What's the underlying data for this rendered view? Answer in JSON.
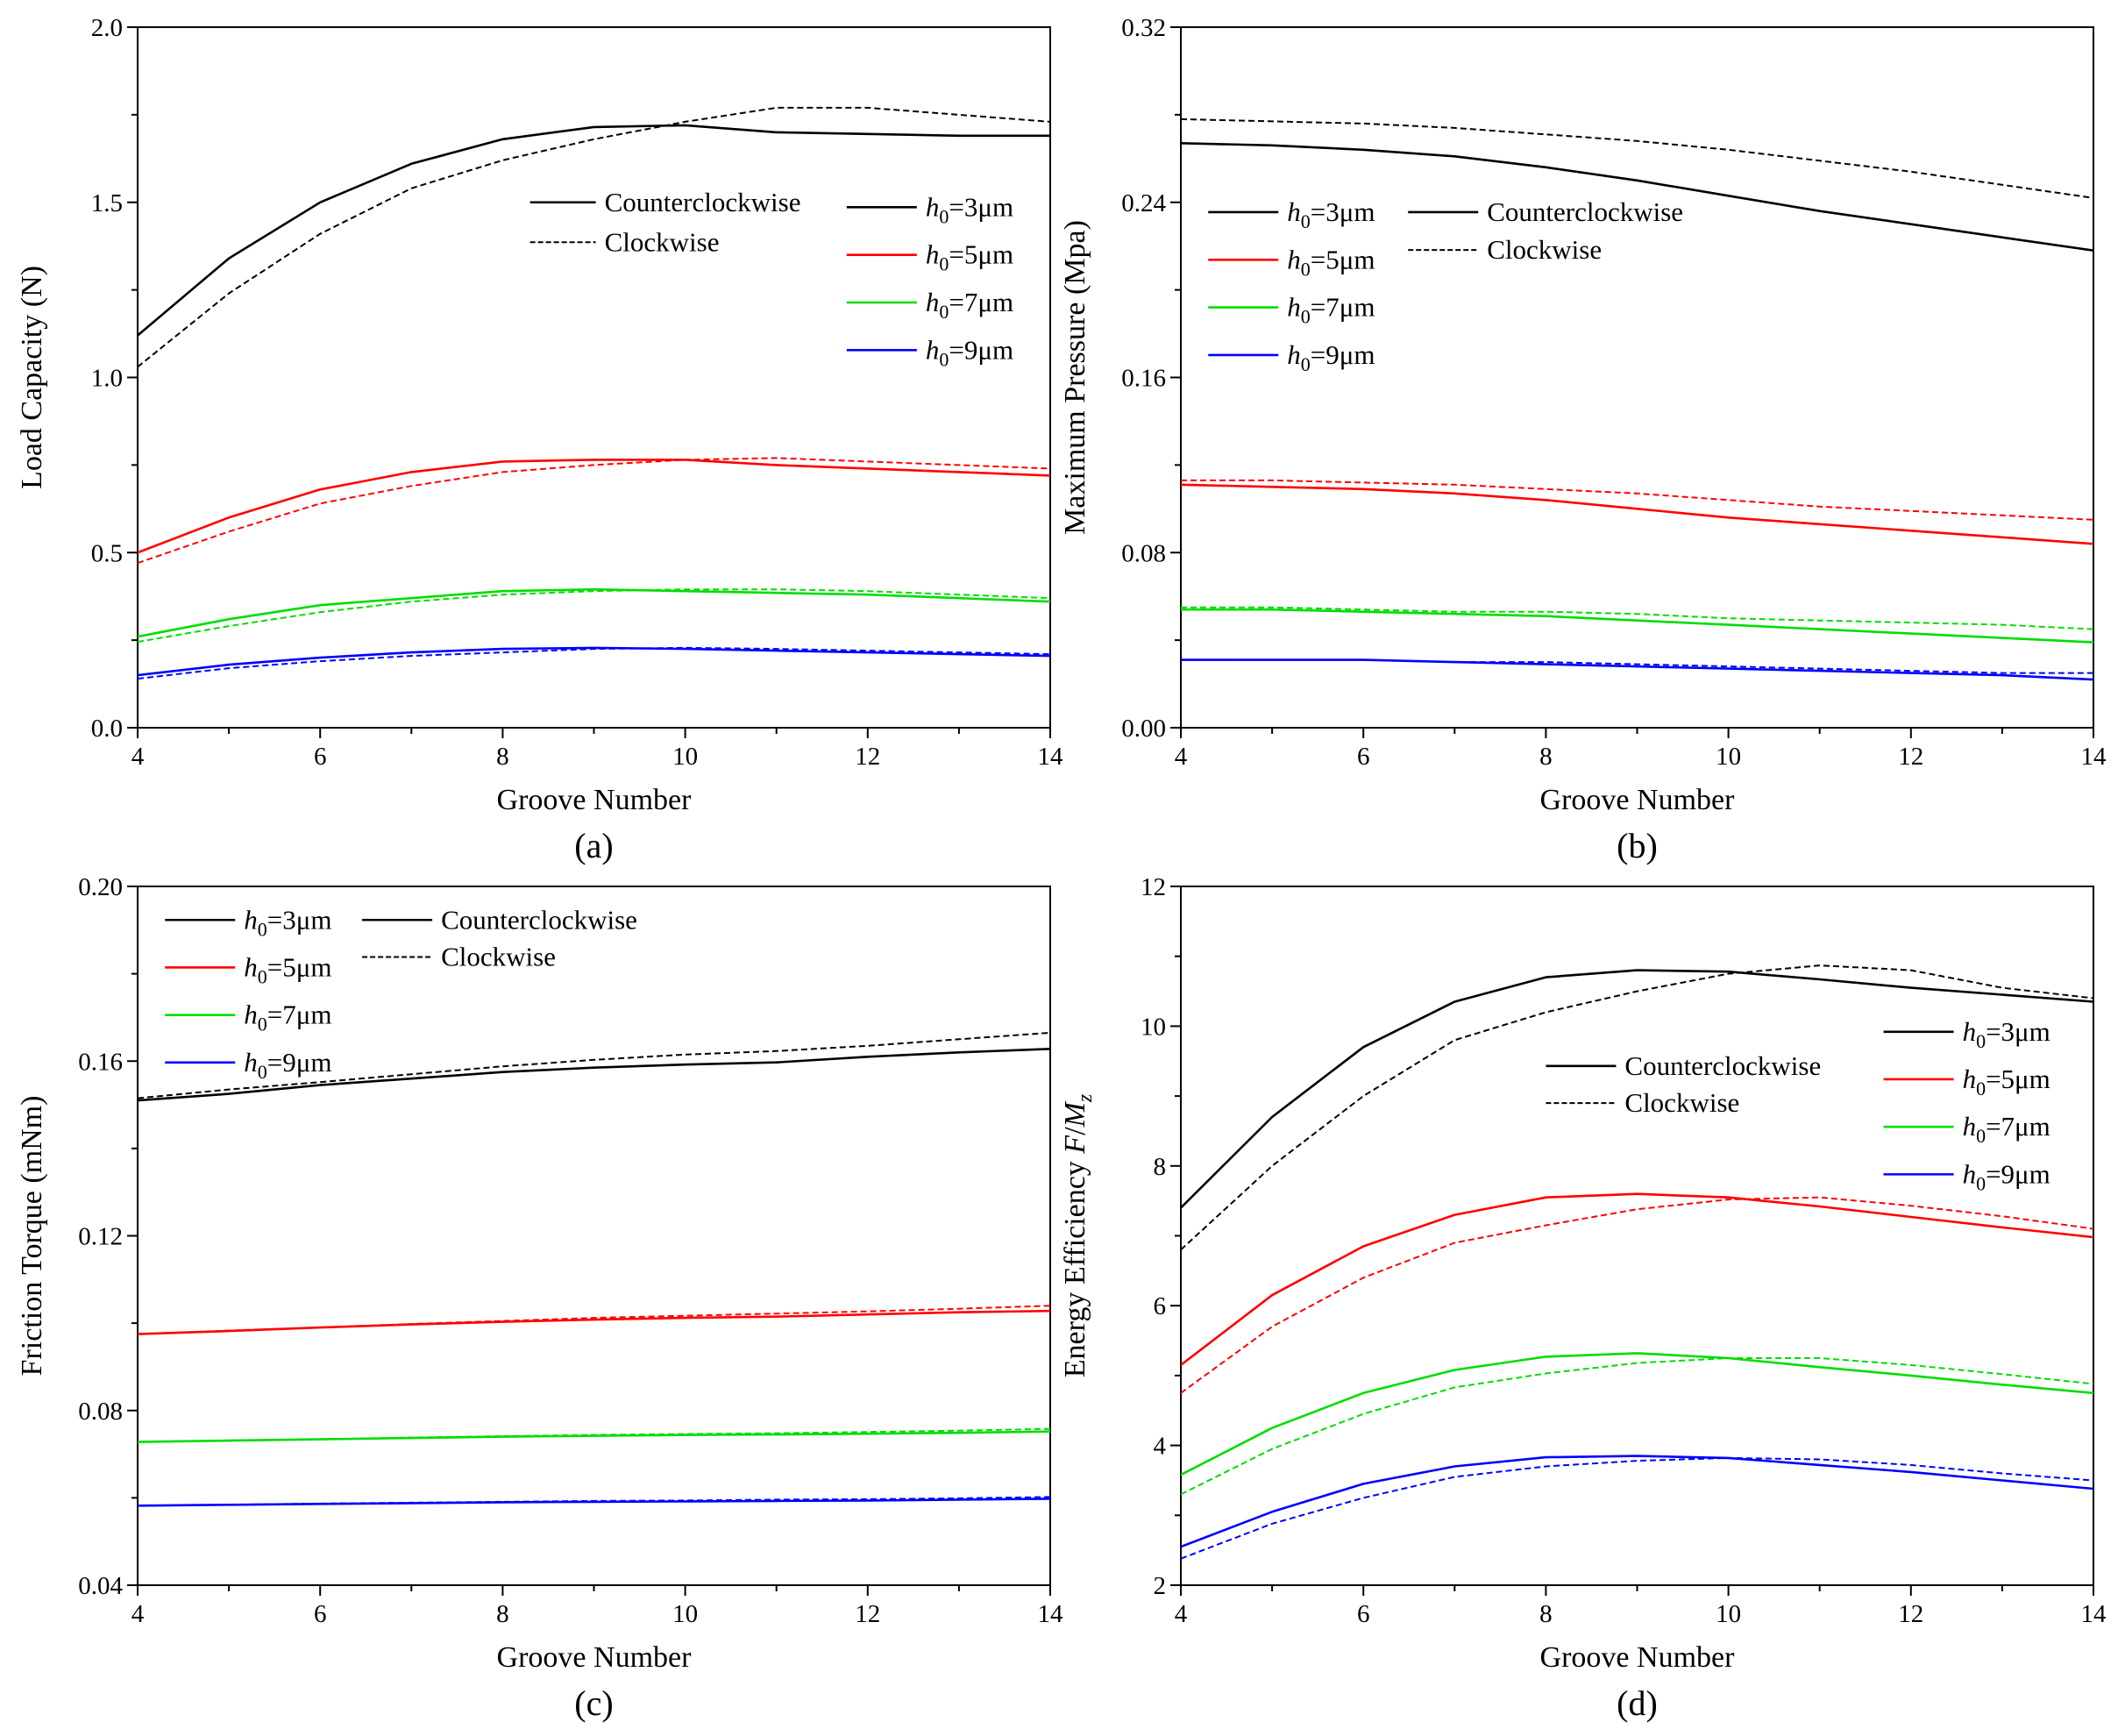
{
  "chart_data": [
    {
      "type": "line",
      "panel": "(a)",
      "xlabel": "Groove Number",
      "ylabel": "Load Capacity (N)",
      "xlim": [
        4,
        14
      ],
      "ylim": [
        0.0,
        2.0
      ],
      "xticks": [
        "4",
        "6",
        "8",
        "10",
        "12",
        "14"
      ],
      "yticks": [
        "0.0",
        "0.5",
        "1.0",
        "1.5",
        "2.0"
      ],
      "ytick_values": [
        0.0,
        0.5,
        1.0,
        1.5,
        2.0
      ],
      "x": [
        4,
        5,
        6,
        7,
        8,
        9,
        10,
        11,
        12,
        13,
        14
      ],
      "direction_legend": {
        "solid": "Counterclockwise",
        "dashed": "Clockwise"
      },
      "series": [
        {
          "h0": "3",
          "color": "#000000",
          "ccw": [
            1.12,
            1.34,
            1.5,
            1.61,
            1.68,
            1.715,
            1.72,
            1.7,
            1.695,
            1.69,
            1.69
          ],
          "cw": [
            1.03,
            1.24,
            1.41,
            1.54,
            1.62,
            1.68,
            1.73,
            1.77,
            1.77,
            1.75,
            1.73
          ]
        },
        {
          "h0": "5",
          "color": "#ff0000",
          "ccw": [
            0.5,
            0.6,
            0.68,
            0.73,
            0.76,
            0.765,
            0.765,
            0.75,
            0.74,
            0.73,
            0.72
          ],
          "cw": [
            0.47,
            0.56,
            0.64,
            0.69,
            0.73,
            0.75,
            0.765,
            0.77,
            0.76,
            0.75,
            0.74
          ]
        },
        {
          "h0": "7",
          "color": "#00dd00",
          "ccw": [
            0.26,
            0.31,
            0.35,
            0.37,
            0.39,
            0.395,
            0.39,
            0.385,
            0.38,
            0.37,
            0.36
          ],
          "cw": [
            0.245,
            0.29,
            0.33,
            0.36,
            0.38,
            0.39,
            0.395,
            0.395,
            0.39,
            0.38,
            0.37
          ]
        },
        {
          "h0": "9",
          "color": "#0000ff",
          "ccw": [
            0.15,
            0.18,
            0.2,
            0.215,
            0.225,
            0.228,
            0.225,
            0.22,
            0.215,
            0.21,
            0.205
          ],
          "cw": [
            0.14,
            0.17,
            0.19,
            0.205,
            0.215,
            0.225,
            0.228,
            0.225,
            0.22,
            0.215,
            0.21
          ]
        }
      ],
      "legend_lines": [
        {
          "text_pre": "",
          "text_post": "Counterclockwise",
          "style": "solid",
          "color": "#000000",
          "lx1": 0.43,
          "ly": 0.25,
          "w": 75
        },
        {
          "text_pre": "",
          "text_post": "Clockwise",
          "style": "dashed",
          "color": "#000000",
          "lx1": 0.43,
          "ly": 0.307,
          "w": 75
        },
        {
          "text_pre": "h",
          "text_post": "=3μm",
          "style": "solid",
          "color": "#000000",
          "lx1": 0.777,
          "ly": 0.257,
          "w": 80
        },
        {
          "text_pre": "h",
          "text_post": "=5μm",
          "style": "solid",
          "color": "#ff0000",
          "lx1": 0.777,
          "ly": 0.325,
          "w": 80
        },
        {
          "text_pre": "h",
          "text_post": "=7μm",
          "style": "solid",
          "color": "#00dd00",
          "lx1": 0.777,
          "ly": 0.393,
          "w": 80
        },
        {
          "text_pre": "h",
          "text_post": "=9μm",
          "style": "solid",
          "color": "#0000ff",
          "lx1": 0.777,
          "ly": 0.461,
          "w": 80
        }
      ]
    },
    {
      "type": "line",
      "panel": "(b)",
      "xlabel": "Groove Number",
      "ylabel": "Maximum Pressure (Mpa)",
      "xlim": [
        4,
        14
      ],
      "ylim": [
        0.0,
        0.32
      ],
      "xticks": [
        "4",
        "6",
        "8",
        "10",
        "12",
        "14"
      ],
      "yticks": [
        "0.00",
        "0.08",
        "0.16",
        "0.24",
        "0.32"
      ],
      "ytick_values": [
        0.0,
        0.08,
        0.16,
        0.24,
        0.32
      ],
      "x": [
        4,
        5,
        6,
        7,
        8,
        9,
        10,
        11,
        12,
        13,
        14
      ],
      "direction_legend": {
        "solid": "Counterclockwise",
        "dashed": "Clockwise"
      },
      "series": [
        {
          "h0": "3",
          "color": "#000000",
          "ccw": [
            0.267,
            0.266,
            0.264,
            0.261,
            0.256,
            0.25,
            0.243,
            0.236,
            0.23,
            0.224,
            0.218
          ],
          "cw": [
            0.278,
            0.277,
            0.276,
            0.274,
            0.271,
            0.268,
            0.264,
            0.259,
            0.254,
            0.248,
            0.242
          ]
        },
        {
          "h0": "5",
          "color": "#ff0000",
          "ccw": [
            0.111,
            0.11,
            0.109,
            0.107,
            0.104,
            0.1,
            0.096,
            0.093,
            0.09,
            0.087,
            0.084
          ],
          "cw": [
            0.113,
            0.113,
            0.112,
            0.111,
            0.109,
            0.107,
            0.104,
            0.101,
            0.099,
            0.097,
            0.095
          ]
        },
        {
          "h0": "7",
          "color": "#00dd00",
          "ccw": [
            0.054,
            0.054,
            0.053,
            0.052,
            0.051,
            0.049,
            0.047,
            0.045,
            0.043,
            0.041,
            0.039
          ],
          "cw": [
            0.055,
            0.055,
            0.054,
            0.053,
            0.053,
            0.052,
            0.05,
            0.049,
            0.048,
            0.047,
            0.045
          ]
        },
        {
          "h0": "9",
          "color": "#0000ff",
          "ccw": [
            0.031,
            0.031,
            0.031,
            0.03,
            0.029,
            0.028,
            0.027,
            0.026,
            0.025,
            0.024,
            0.022
          ],
          "cw": [
            0.031,
            0.031,
            0.031,
            0.03,
            0.03,
            0.029,
            0.028,
            0.027,
            0.026,
            0.025,
            0.025
          ]
        }
      ],
      "legend_lines": [
        {
          "text_pre": "h",
          "text_post": "=3μm",
          "style": "solid",
          "color": "#000000",
          "lx1": 0.03,
          "ly": 0.264,
          "w": 80
        },
        {
          "text_pre": "h",
          "text_post": "=5μm",
          "style": "solid",
          "color": "#ff0000",
          "lx1": 0.03,
          "ly": 0.332,
          "w": 80
        },
        {
          "text_pre": "h",
          "text_post": "=7μm",
          "style": "solid",
          "color": "#00dd00",
          "lx1": 0.03,
          "ly": 0.4,
          "w": 80
        },
        {
          "text_pre": "h",
          "text_post": "=9μm",
          "style": "solid",
          "color": "#0000ff",
          "lx1": 0.03,
          "ly": 0.468,
          "w": 80
        },
        {
          "text_pre": "",
          "text_post": "Counterclockwise",
          "style": "solid",
          "color": "#000000",
          "lx1": 0.249,
          "ly": 0.264,
          "w": 80
        },
        {
          "text_pre": "",
          "text_post": "Clockwise",
          "style": "dashed",
          "color": "#000000",
          "lx1": 0.249,
          "ly": 0.318,
          "w": 80
        }
      ]
    },
    {
      "type": "line",
      "panel": "(c)",
      "xlabel": "Groove Number",
      "ylabel": "Friction Torque (mNm)",
      "xlim": [
        4,
        14
      ],
      "ylim": [
        0.04,
        0.2
      ],
      "xticks": [
        "4",
        "6",
        "8",
        "10",
        "12",
        "14"
      ],
      "yticks": [
        "0.04",
        "0.08",
        "0.12",
        "0.16",
        "0.20"
      ],
      "ytick_values": [
        0.04,
        0.08,
        0.12,
        0.16,
        0.2
      ],
      "x": [
        4,
        5,
        6,
        7,
        8,
        9,
        10,
        11,
        12,
        13,
        14
      ],
      "direction_legend": {
        "solid": "Counterclockwise",
        "dashed": "Clockwise"
      },
      "series": [
        {
          "h0": "3",
          "color": "#000000",
          "ccw": [
            0.151,
            0.1525,
            0.1545,
            0.156,
            0.1575,
            0.1585,
            0.1592,
            0.1597,
            0.161,
            0.162,
            0.1628
          ],
          "cw": [
            0.1515,
            0.1535,
            0.1552,
            0.157,
            0.1588,
            0.1603,
            0.1615,
            0.1623,
            0.1635,
            0.165,
            0.1665
          ]
        },
        {
          "h0": "5",
          "color": "#ff0000",
          "ccw": [
            0.0975,
            0.0982,
            0.099,
            0.0997,
            0.1003,
            0.1008,
            0.1012,
            0.1015,
            0.102,
            0.1025,
            0.1028
          ],
          "cw": [
            0.0975,
            0.0983,
            0.099,
            0.0998,
            0.1005,
            0.1012,
            0.1017,
            0.1022,
            0.1027,
            0.1033,
            0.104
          ]
        },
        {
          "h0": "7",
          "color": "#00dd00",
          "ccw": [
            0.0728,
            0.0731,
            0.0734,
            0.0737,
            0.074,
            0.0742,
            0.0744,
            0.0745,
            0.0747,
            0.0749,
            0.0752
          ],
          "cw": [
            0.0728,
            0.0731,
            0.0734,
            0.0738,
            0.0741,
            0.0744,
            0.0746,
            0.0748,
            0.0751,
            0.0754,
            0.0758
          ]
        },
        {
          "h0": "9",
          "color": "#0000ff",
          "ccw": [
            0.0582,
            0.0584,
            0.0586,
            0.0588,
            0.059,
            0.0591,
            0.0592,
            0.0593,
            0.0594,
            0.0596,
            0.0598
          ],
          "cw": [
            0.0582,
            0.0584,
            0.0587,
            0.0589,
            0.0591,
            0.0593,
            0.0594,
            0.0596,
            0.0597,
            0.0599,
            0.0602
          ]
        }
      ],
      "legend_lines": [
        {
          "text_pre": "h",
          "text_post": "=3μm",
          "style": "solid",
          "color": "#000000",
          "lx1": 0.03,
          "ly": 0.048,
          "w": 80
        },
        {
          "text_pre": "h",
          "text_post": "=5μm",
          "style": "solid",
          "color": "#ff0000",
          "lx1": 0.03,
          "ly": 0.116,
          "w": 80
        },
        {
          "text_pre": "h",
          "text_post": "=7μm",
          "style": "solid",
          "color": "#00dd00",
          "lx1": 0.03,
          "ly": 0.184,
          "w": 80
        },
        {
          "text_pre": "h",
          "text_post": "=9μm",
          "style": "solid",
          "color": "#0000ff",
          "lx1": 0.03,
          "ly": 0.252,
          "w": 80
        },
        {
          "text_pre": "",
          "text_post": "Counterclockwise",
          "style": "solid",
          "color": "#000000",
          "lx1": 0.246,
          "ly": 0.048,
          "w": 80
        },
        {
          "text_pre": "",
          "text_post": "Clockwise",
          "style": "dashed",
          "color": "#000000",
          "lx1": 0.246,
          "ly": 0.101,
          "w": 80
        }
      ]
    },
    {
      "type": "line",
      "panel": "(d)",
      "xlabel": "Groove Number",
      "ylabel": "Energy Efficiency F/Mz",
      "ylabel_parts": {
        "prefix": "Energy Efficiency ",
        "var1": "F",
        "sep": "/",
        "var2": "M",
        "sub": "z"
      },
      "xlim": [
        4,
        14
      ],
      "ylim": [
        2,
        12
      ],
      "xticks": [
        "4",
        "6",
        "8",
        "10",
        "12",
        "14"
      ],
      "yticks": [
        "2",
        "4",
        "6",
        "8",
        "10",
        "12"
      ],
      "ytick_values": [
        2,
        4,
        6,
        8,
        10,
        12
      ],
      "x": [
        4,
        5,
        6,
        7,
        8,
        9,
        10,
        11,
        12,
        13,
        14
      ],
      "direction_legend": {
        "solid": "Counterclockwise",
        "dashed": "Clockwise"
      },
      "series": [
        {
          "h0": "3",
          "color": "#000000",
          "ccw": [
            7.4,
            8.7,
            9.7,
            10.35,
            10.7,
            10.8,
            10.78,
            10.67,
            10.55,
            10.45,
            10.35
          ],
          "cw": [
            6.8,
            8.0,
            9.0,
            9.8,
            10.2,
            10.5,
            10.75,
            10.87,
            10.8,
            10.55,
            10.4
          ]
        },
        {
          "h0": "5",
          "color": "#ff0000",
          "ccw": [
            5.15,
            6.15,
            6.85,
            7.3,
            7.55,
            7.6,
            7.55,
            7.42,
            7.27,
            7.12,
            6.98
          ],
          "cw": [
            4.75,
            5.7,
            6.4,
            6.9,
            7.15,
            7.38,
            7.52,
            7.55,
            7.43,
            7.28,
            7.1
          ]
        },
        {
          "h0": "7",
          "color": "#00dd00",
          "ccw": [
            3.58,
            4.25,
            4.75,
            5.08,
            5.27,
            5.32,
            5.25,
            5.12,
            5.0,
            4.87,
            4.75
          ],
          "cw": [
            3.3,
            3.95,
            4.45,
            4.83,
            5.03,
            5.18,
            5.25,
            5.25,
            5.15,
            5.02,
            4.88
          ]
        },
        {
          "h0": "9",
          "color": "#0000ff",
          "ccw": [
            2.55,
            3.05,
            3.45,
            3.7,
            3.83,
            3.85,
            3.82,
            3.72,
            3.62,
            3.5,
            3.38
          ],
          "cw": [
            2.38,
            2.88,
            3.25,
            3.55,
            3.7,
            3.78,
            3.82,
            3.8,
            3.72,
            3.6,
            3.5
          ]
        }
      ],
      "legend_lines": [
        {
          "text_pre": "",
          "text_post": "Counterclockwise",
          "style": "solid",
          "color": "#000000",
          "lx1": 0.4,
          "ly": 0.257,
          "w": 80
        },
        {
          "text_pre": "",
          "text_post": "Clockwise",
          "style": "dashed",
          "color": "#000000",
          "lx1": 0.4,
          "ly": 0.31,
          "w": 80
        },
        {
          "text_pre": "h",
          "text_post": "=3μm",
          "style": "solid",
          "color": "#000000",
          "lx1": 0.77,
          "ly": 0.208,
          "w": 80
        },
        {
          "text_pre": "h",
          "text_post": "=5μm",
          "style": "solid",
          "color": "#ff0000",
          "lx1": 0.77,
          "ly": 0.276,
          "w": 80
        },
        {
          "text_pre": "h",
          "text_post": "=7μm",
          "style": "solid",
          "color": "#00dd00",
          "lx1": 0.77,
          "ly": 0.344,
          "w": 80
        },
        {
          "text_pre": "h",
          "text_post": "=9μm",
          "style": "solid",
          "color": "#0000ff",
          "lx1": 0.77,
          "ly": 0.412,
          "w": 80
        }
      ]
    }
  ]
}
